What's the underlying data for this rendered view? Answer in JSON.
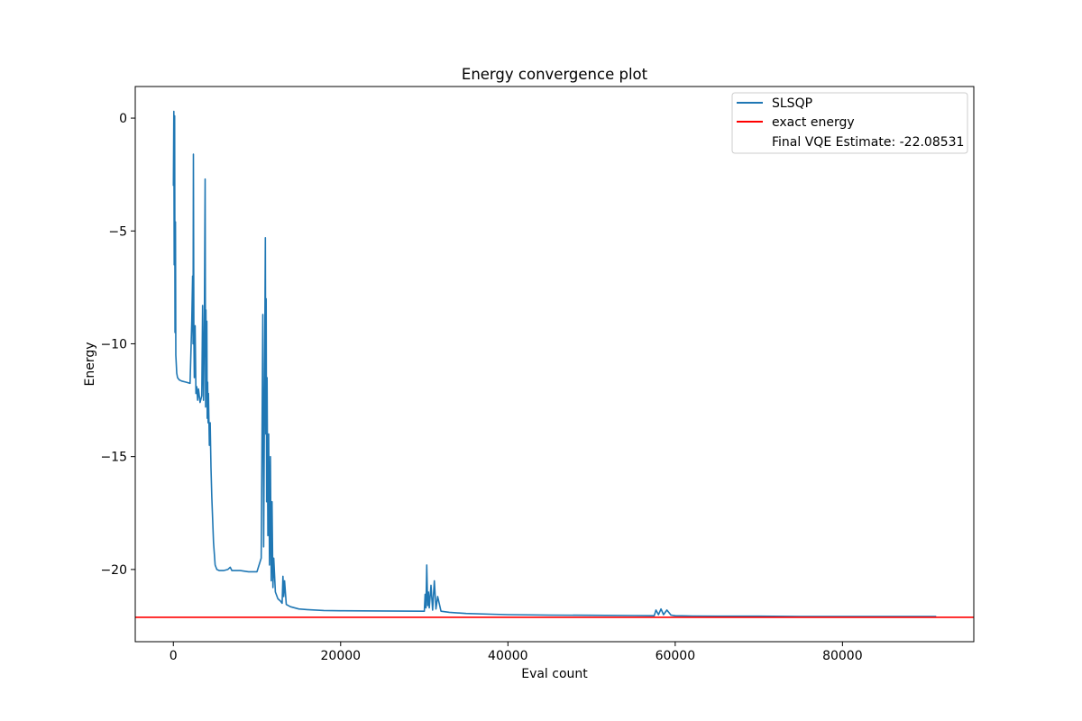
{
  "chart_data": {
    "type": "line",
    "title": "Energy convergence plot",
    "xlabel": "Eval count",
    "ylabel": "Energy",
    "xlim": [
      -4556,
      95700
    ],
    "ylim": [
      -23.2,
      1.4
    ],
    "xticks": [
      0,
      20000,
      40000,
      60000,
      80000
    ],
    "xtick_labels": [
      "0",
      "20000",
      "40000",
      "60000",
      "80000"
    ],
    "yticks": [
      0,
      -5,
      -10,
      -15,
      -20
    ],
    "ytick_labels": [
      "0",
      "−5",
      "−10",
      "−15",
      "−20"
    ],
    "grid": false,
    "legend_placement": "upper right",
    "legend": [
      {
        "label": "SLSQP",
        "color": "#1f77b4",
        "marker": "line"
      },
      {
        "label": "exact energy",
        "color": "#ff0000",
        "marker": "line"
      },
      {
        "label": "Final VQE Estimate: -22.08531",
        "color": "",
        "marker": "none"
      }
    ],
    "series": [
      {
        "name": "SLSQP",
        "color": "#1f77b4",
        "x": [
          0,
          60,
          100,
          150,
          200,
          250,
          300,
          400,
          500,
          700,
          1000,
          1500,
          2000,
          2200,
          2300,
          2350,
          2400,
          2450,
          2500,
          2600,
          2700,
          2800,
          2900,
          3000,
          3200,
          3400,
          3500,
          3600,
          3700,
          3800,
          3850,
          3900,
          3950,
          4000,
          4050,
          4100,
          4150,
          4200,
          4300,
          4400,
          4500,
          4600,
          4800,
          5000,
          5200,
          5500,
          6000,
          6500,
          6800,
          7000,
          8000,
          9000,
          10000,
          10500,
          10700,
          10800,
          10900,
          11000,
          11050,
          11100,
          11150,
          11200,
          11300,
          11400,
          11500,
          11600,
          11700,
          11800,
          11900,
          12000,
          12200,
          12500,
          12800,
          13000,
          13100,
          13200,
          13300,
          13500,
          14000,
          15000,
          16000,
          17000,
          18000,
          20000,
          25000,
          30000,
          30100,
          30200,
          30300,
          30400,
          30500,
          30600,
          30800,
          31000,
          31200,
          31400,
          31600,
          32000,
          33000,
          35000,
          38000,
          40000,
          45000,
          50000,
          55000,
          57500,
          57700,
          58000,
          58300,
          58600,
          59000,
          59500,
          60000,
          62000,
          65000,
          70000,
          75000,
          80000,
          85000,
          91200
        ],
        "y": [
          -3.0,
          0.3,
          -6.5,
          0.1,
          -9.5,
          -4.6,
          -10.5,
          -11.3,
          -11.5,
          -11.6,
          -11.65,
          -11.7,
          -11.75,
          -9.0,
          -7.0,
          -10.0,
          -1.6,
          -9.5,
          -11.5,
          -9.2,
          -12.2,
          -11.9,
          -12.5,
          -12.0,
          -12.6,
          -12.3,
          -8.3,
          -12.5,
          -9.5,
          -2.7,
          -12.8,
          -8.5,
          -11.8,
          -9.0,
          -13.3,
          -11.7,
          -13.5,
          -12.2,
          -14.5,
          -13.5,
          -15.5,
          -16.8,
          -18.8,
          -19.8,
          -20.0,
          -20.05,
          -20.05,
          -20.0,
          -19.9,
          -20.05,
          -20.05,
          -20.1,
          -20.1,
          -19.5,
          -8.7,
          -19.0,
          -12.0,
          -5.3,
          -14.0,
          -8.0,
          -17.0,
          -11.5,
          -18.5,
          -14.0,
          -19.8,
          -15.0,
          -20.5,
          -17.0,
          -20.8,
          -19.5,
          -21.0,
          -21.3,
          -21.4,
          -21.5,
          -20.3,
          -21.2,
          -20.5,
          -21.55,
          -21.65,
          -21.75,
          -21.78,
          -21.8,
          -21.82,
          -21.83,
          -21.84,
          -21.85,
          -21.1,
          -21.7,
          -19.8,
          -21.6,
          -21.0,
          -21.7,
          -20.7,
          -21.8,
          -20.5,
          -21.75,
          -21.2,
          -21.85,
          -21.9,
          -21.95,
          -21.98,
          -22.0,
          -22.02,
          -22.03,
          -22.04,
          -22.05,
          -21.8,
          -22.0,
          -21.75,
          -22.0,
          -21.8,
          -22.02,
          -22.05,
          -22.06,
          -22.07,
          -22.07,
          -22.08,
          -22.08,
          -22.084,
          -22.085
        ]
      }
    ],
    "hlines": [
      {
        "name": "exact energy",
        "y": -22.12,
        "color": "#ff0000"
      }
    ]
  }
}
